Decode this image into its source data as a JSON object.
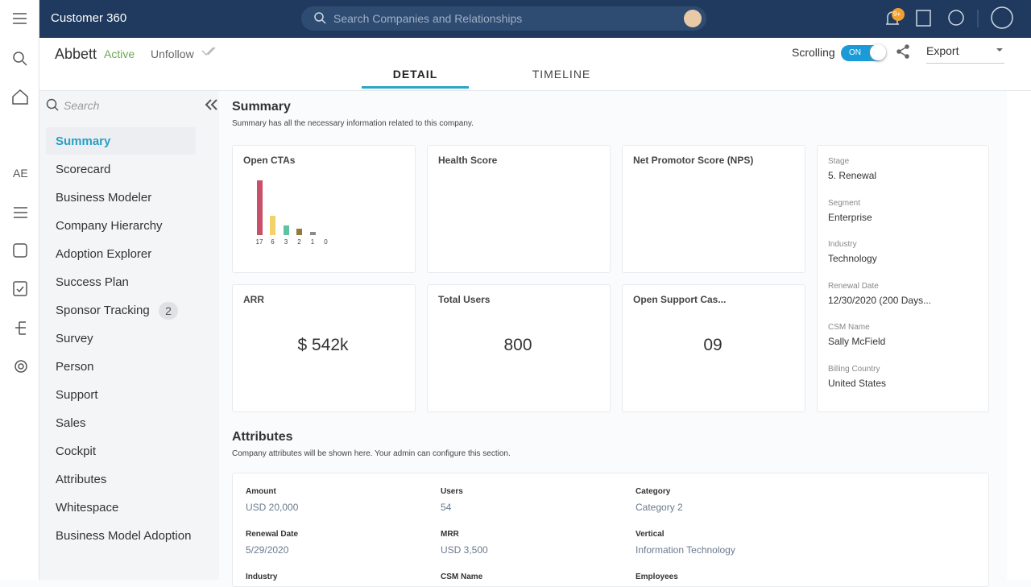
{
  "topbar": {
    "title": "Customer 360",
    "search": "Search Companies and Relationships",
    "notification_badge": "9+"
  },
  "rail": {
    "initials": "AE"
  },
  "header": {
    "company": "Abbett",
    "status": "Active",
    "follow": "Unfollow",
    "scrolling": "Scrolling",
    "toggle": "ON",
    "export": "Export",
    "tabs": [
      "DETAIL",
      "TIMELINE"
    ]
  },
  "sidebar": {
    "search": "Search",
    "items": [
      {
        "label": "Summary"
      },
      {
        "label": "Scorecard"
      },
      {
        "label": "Business Modeler"
      },
      {
        "label": "Company Hierarchy"
      },
      {
        "label": "Adoption Explorer"
      },
      {
        "label": "Success Plan"
      },
      {
        "label": "Sponsor Tracking",
        "badge": 2
      },
      {
        "label": "Survey"
      },
      {
        "label": "Person"
      },
      {
        "label": "Support"
      },
      {
        "label": "Sales"
      },
      {
        "label": "Cockpit"
      },
      {
        "label": "Attributes"
      },
      {
        "label": "Whitespace"
      },
      {
        "label": "Business Model Adoption"
      }
    ]
  },
  "summary": {
    "title": "Summary",
    "subtitle": "Summary has all the necessary information related to this company.",
    "open_ctas": {
      "title": "Open CTAs",
      "values": [
        17,
        6,
        3,
        2,
        1,
        0
      ],
      "colors": [
        "#c9506a",
        "#f2d36b",
        "#5ec4a0",
        "#8d7b3f",
        "#8a8a86",
        "#c0c0c0"
      ]
    },
    "health_score": {
      "title": "Health Score"
    },
    "nps": {
      "title": "Net Promotor Score (NPS)"
    },
    "arr": {
      "title": "ARR",
      "value": "$ 542k"
    },
    "total_users": {
      "title": "Total Users",
      "value": 800
    },
    "support": {
      "title": "Open Support Cas...",
      "value": "09"
    },
    "details": [
      {
        "label": "Stage",
        "value": "5. Renewal"
      },
      {
        "label": "Segment",
        "value": "Enterprise"
      },
      {
        "label": "Industry",
        "value": "Technology"
      },
      {
        "label": "Renewal Date",
        "value": "12/30/2020 (200 Days..."
      },
      {
        "label": "CSM Name",
        "value": "Sally McField"
      },
      {
        "label": "Billing Country",
        "value": "United States"
      }
    ]
  },
  "attributes": {
    "title": "Attributes",
    "subtitle": "Company attributes will be shown here. Your admin can configure this section.",
    "fields": [
      {
        "label": "Amount",
        "value": "USD 20,000"
      },
      {
        "label": "Users",
        "value": "54"
      },
      {
        "label": "Category",
        "value": "Category 2"
      },
      {
        "label": "Renewal Date",
        "value": "5/29/2020"
      },
      {
        "label": "MRR",
        "value": "USD 3,500"
      },
      {
        "label": "Vertical",
        "value": "Information Technology"
      },
      {
        "label": "Industry"
      },
      {
        "label": "CSM Name"
      },
      {
        "label": "Employees"
      }
    ]
  }
}
